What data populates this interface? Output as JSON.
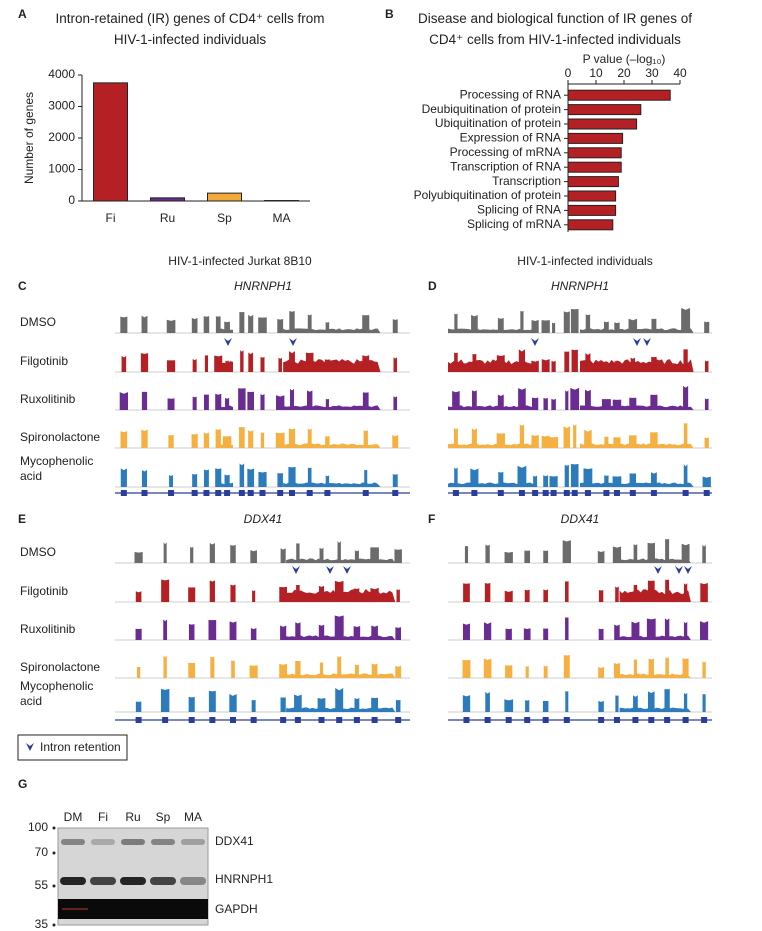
{
  "chart_data": [
    {
      "type": "bar",
      "panel": "A",
      "title": "Intron-retained (IR) genes of CD4⁺ cells from HIV-1-infected individuals",
      "y_label": "Number of genes",
      "categories": [
        "Fi",
        "Ru",
        "Sp",
        "MA"
      ],
      "values": [
        3750,
        100,
        250,
        15
      ],
      "colors": [
        "#b52025",
        "#6a2c91",
        "#f2a93b",
        "#2b7bbd"
      ],
      "ylim": [
        0,
        4000
      ],
      "yticks": [
        0,
        1000,
        2000,
        3000,
        4000
      ]
    },
    {
      "type": "hbar",
      "panel": "B",
      "title": "Disease and biological function of IR genes of CD4⁺ cells from HIV-1-infected individuals",
      "x_label": "P value (–log₁₀)",
      "categories": [
        "Processing of RNA",
        "Deubiquitination of protein",
        "Ubiquitination of protein",
        "Expression of RNA",
        "Processing of mRNA",
        "Transcription of RNA",
        "Transcription",
        "Polyubiquitination of protein",
        "Splicing of RNA",
        "Splicing of mRNA"
      ],
      "values": [
        36.5,
        26,
        24.5,
        19.5,
        19,
        19,
        18,
        17,
        17,
        16
      ],
      "color": "#b52025",
      "xlim": [
        0,
        40
      ],
      "xticks": [
        0,
        10,
        20,
        30,
        40
      ]
    }
  ],
  "track_headers": [
    "HIV-1-infected Jurkat 8B10",
    "HIV-1-infected individuals"
  ],
  "track_panels": [
    {
      "panel": "C",
      "gene": "HNRNPH1"
    },
    {
      "panel": "D",
      "gene": "HNRNPH1"
    },
    {
      "panel": "E",
      "gene": "DDX41"
    },
    {
      "panel": "F",
      "gene": "DDX41"
    }
  ],
  "tracks": [
    {
      "name": "DMSO",
      "color": "#6b6b6b"
    },
    {
      "name": "Filgotinib",
      "color": "#b52025"
    },
    {
      "name": "Ruxolitinib",
      "color": "#6a2c91"
    },
    {
      "name": "Spironolactone",
      "color": "#f5b041"
    },
    {
      "name": "Mycophenolic acid",
      "color": "#2b7bbd"
    }
  ],
  "legend": "Intron retention",
  "blot": {
    "panel": "G",
    "lanes": [
      "DM",
      "Fi",
      "Ru",
      "Sp",
      "MA"
    ],
    "markers": [
      100,
      70,
      55,
      35
    ],
    "bands": [
      "DDX41",
      "HNRNPH1",
      "GAPDH"
    ]
  }
}
